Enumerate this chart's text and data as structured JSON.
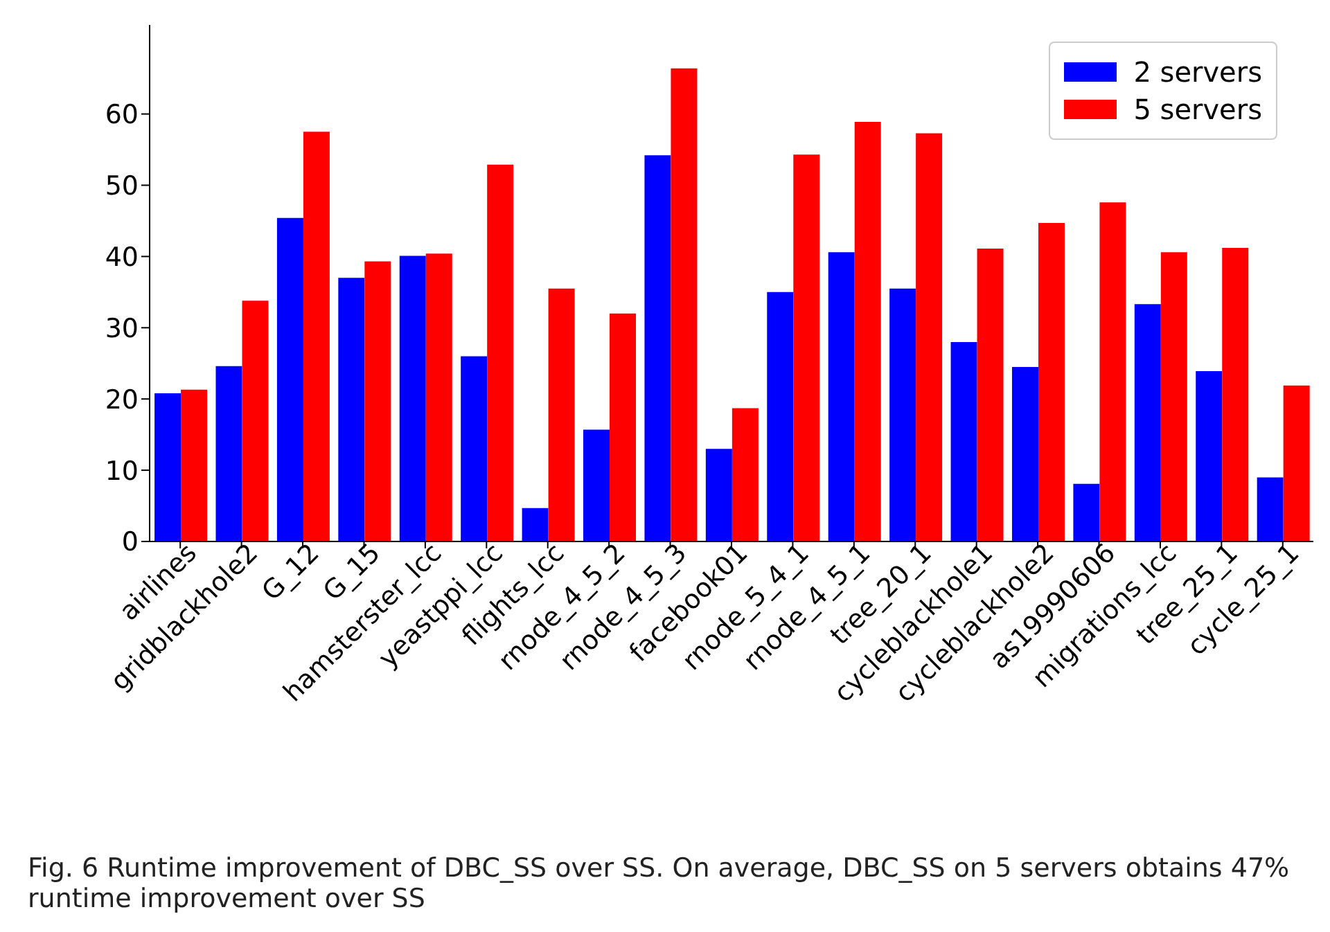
{
  "chart_data": {
    "type": "bar",
    "categories": [
      "airlines",
      "gridblackhole2",
      "G_12",
      "G_15",
      "hamsterster_lcc",
      "yeastppi_lcc",
      "flights_lcc",
      "rnode_4_5_2",
      "rnode_4_5_3",
      "facebook01",
      "rnode_5_4_1",
      "rnode_4_5_1",
      "tree_20_1",
      "cycleblackhole1",
      "cycleblackhole2",
      "as19990606",
      "migrations_lcc",
      "tree_25_1",
      "cycle_25_1"
    ],
    "series": [
      {
        "name": "2 servers",
        "color": "#0000ff",
        "values": [
          20.8,
          24.6,
          45.4,
          37,
          40.1,
          26,
          4.7,
          15.7,
          54.2,
          13,
          35,
          40.6,
          35.5,
          28,
          24.5,
          8.1,
          33.3,
          23.9,
          9
        ]
      },
      {
        "name": "5 servers",
        "color": "#ff0000",
        "values": [
          21.3,
          33.8,
          57.5,
          39.3,
          40.4,
          52.9,
          35.5,
          32,
          66.4,
          18.7,
          54.3,
          58.9,
          57.3,
          41.1,
          44.7,
          47.6,
          40.6,
          41.2,
          21.9
        ]
      }
    ],
    "ylim": [
      0,
      72.5
    ],
    "yticks": [
      0,
      10,
      20,
      30,
      40,
      50,
      60
    ],
    "grid": false,
    "legend": "top right",
    "annotations": [
      "Fig. 6  Runtime improvement of DBC_SS over SS. On average, DBC_SS on 5 servers obtains 47% runtime improvement over SS"
    ]
  }
}
